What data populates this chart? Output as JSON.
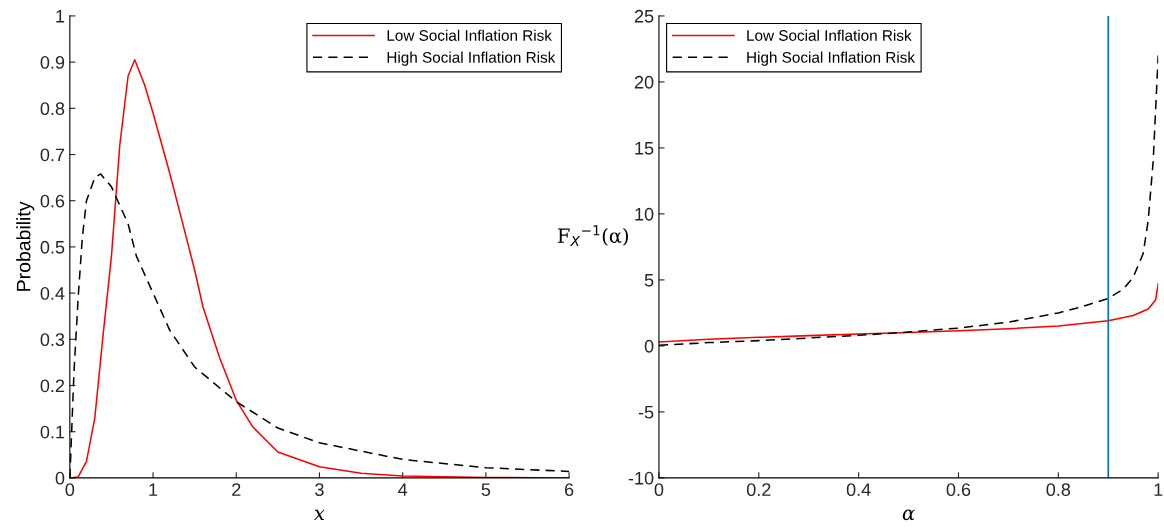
{
  "chart_data": [
    {
      "type": "line",
      "xlabel": "x",
      "ylabel": "Probability",
      "xlim": [
        0,
        6
      ],
      "ylim": [
        0,
        1
      ],
      "xticks": [
        0,
        1,
        2,
        3,
        4,
        5,
        6
      ],
      "yticks": [
        0,
        0.1,
        0.2,
        0.3,
        0.4,
        0.5,
        0.6,
        0.7,
        0.8,
        0.9,
        1
      ],
      "grid": false,
      "legend": "top right",
      "series": [
        {
          "name": "Low Social Inflation Risk",
          "color": "#ff0000",
          "line_style": "solid",
          "x": [
            0,
            0.1,
            0.2,
            0.3,
            0.4,
            0.5,
            0.6,
            0.7,
            0.78,
            0.9,
            1.0,
            1.2,
            1.4,
            1.5,
            1.6,
            1.8,
            2.0,
            2.2,
            2.5,
            3.0,
            3.5,
            4,
            5,
            6
          ],
          "values": [
            0,
            0.002,
            0.036,
            0.13,
            0.31,
            0.48,
            0.72,
            0.87,
            0.905,
            0.85,
            0.79,
            0.66,
            0.52,
            0.45,
            0.37,
            0.26,
            0.168,
            0.11,
            0.056,
            0.024,
            0.01,
            0.004,
            0.001,
            0
          ]
        },
        {
          "name": "High Social Inflation Risk",
          "color": "#000000",
          "line_style": "dashed",
          "x": [
            0,
            0.05,
            0.1,
            0.15,
            0.2,
            0.3,
            0.37,
            0.5,
            0.7,
            0.8,
            1.0,
            1.2,
            1.5,
            2,
            2.5,
            3,
            4,
            5,
            6
          ],
          "values": [
            0,
            0.23,
            0.39,
            0.52,
            0.6,
            0.65,
            0.658,
            0.63,
            0.55,
            0.48,
            0.4,
            0.32,
            0.24,
            0.165,
            0.108,
            0.076,
            0.04,
            0.022,
            0.014
          ]
        }
      ]
    },
    {
      "type": "line",
      "xlabel": "α",
      "ylabel": "F$_{X}$$^{−1}$(α)",
      "xlim": [
        0,
        1
      ],
      "ylim": [
        -10,
        25
      ],
      "xticks": [
        0,
        0.2,
        0.4,
        0.6,
        0.8,
        1
      ],
      "yticks": [
        -10,
        -5,
        0,
        5,
        10,
        15,
        20,
        25
      ],
      "grid": false,
      "legend": "top left",
      "ref_lines": [
        {
          "axis": "x",
          "value": 0.9,
          "color": "#0072bd"
        }
      ],
      "series": [
        {
          "name": "Low Social Inflation Risk",
          "color": "#ff0000",
          "line_style": "solid",
          "x": [
            0,
            0.1,
            0.2,
            0.3,
            0.4,
            0.5,
            0.6,
            0.7,
            0.8,
            0.9,
            0.95,
            0.98,
            0.995,
            1
          ],
          "values": [
            0.3,
            0.5,
            0.65,
            0.78,
            0.9,
            1.02,
            1.15,
            1.3,
            1.5,
            1.9,
            2.3,
            2.8,
            3.5,
            4.7
          ]
        },
        {
          "name": "High Social Inflation Risk",
          "color": "#000000",
          "line_style": "dashed",
          "x": [
            0,
            0.05,
            0.1,
            0.2,
            0.3,
            0.4,
            0.5,
            0.6,
            0.7,
            0.8,
            0.85,
            0.9,
            0.93,
            0.95,
            0.97,
            0.98,
            0.99,
            0.995,
            1
          ],
          "values": [
            0.05,
            0.15,
            0.25,
            0.4,
            0.6,
            0.8,
            1.05,
            1.35,
            1.8,
            2.5,
            3.0,
            3.6,
            4.3,
            5.2,
            7.0,
            9.5,
            14,
            18,
            22
          ]
        }
      ]
    }
  ]
}
